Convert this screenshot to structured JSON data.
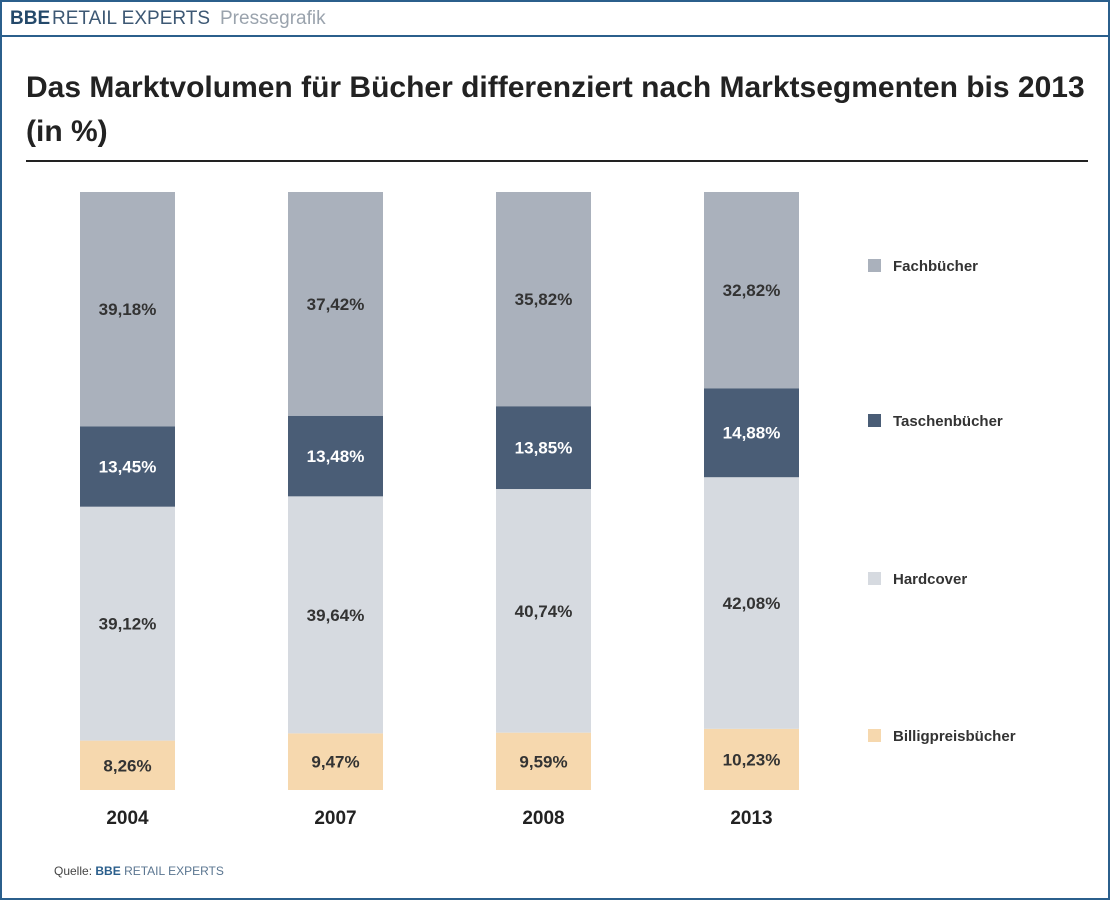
{
  "header": {
    "brand_bold": "BBE",
    "brand_rest": "RETAIL EXPERTS",
    "subtitle": "Pressegrafik"
  },
  "chart_data": {
    "type": "bar",
    "stacked": true,
    "title": "Das Marktvolumen für Bücher differenziert nach Marktsegmenten bis 2013 (in %)",
    "categories": [
      "2004",
      "2007",
      "2008",
      "2013"
    ],
    "series": [
      {
        "name": "Billigpreisbücher",
        "color": "#f6d8ae",
        "values": [
          8.26,
          9.47,
          9.59,
          10.23
        ],
        "labels": [
          "8,26%",
          "9,47%",
          "9,59%",
          "10,23%"
        ]
      },
      {
        "name": "Hardcover",
        "color": "#d6dae0",
        "values": [
          39.12,
          39.64,
          40.74,
          42.08
        ],
        "labels": [
          "39,12%",
          "39,64%",
          "40,74%",
          "42,08%"
        ]
      },
      {
        "name": "Taschenbücher",
        "color": "#4a5d76",
        "values": [
          13.45,
          13.48,
          13.85,
          14.88
        ],
        "labels": [
          "13,45%",
          "13,48%",
          "13,85%",
          "14,88%"
        ]
      },
      {
        "name": "Fachbücher",
        "color": "#aab1bc",
        "values": [
          39.18,
          37.42,
          35.82,
          32.82
        ],
        "labels": [
          "39,18%",
          "37,42%",
          "35,82%",
          "32,82%"
        ]
      }
    ],
    "legend": "right",
    "grid": false
  },
  "footer": {
    "source_label": "Quelle:",
    "source_bold": "BBE",
    "source_rest": "RETAIL EXPERTS"
  }
}
